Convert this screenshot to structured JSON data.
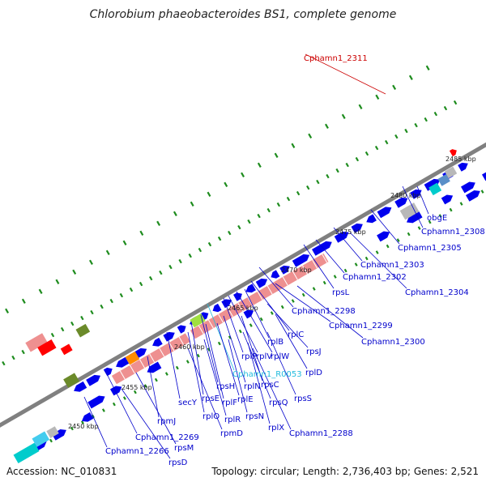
{
  "title": "Chlorobium phaeobacteroides BS1, complete genome",
  "footer": {
    "accession": "Accession: NC_010831",
    "summary": "Topology: circular; Length: 2,736,403 bp; Genes: 2,521"
  },
  "colors": {
    "gene_blue": "#0000ee",
    "rrna_pink": "#ee9090",
    "highlight_red": "#ff0000",
    "rna_cyan": "#00cccc",
    "steel_blue": "#5a8fc8",
    "olive": "#6b8a2a",
    "grey": "#b8b8b8",
    "khaki": "#b8b070",
    "orange": "#ff8c00",
    "lime": "#a0e040",
    "gc_green": "#1e8c1e",
    "backbone": "#808080",
    "label_blue": "#0000cc",
    "label_red": "#cc0000",
    "label_cyan": "#22bbdd"
  },
  "scale_labels": [
    {
      "text": "2450 kbp"
    },
    {
      "text": "2455 kbp"
    },
    {
      "text": "2460 kbp"
    },
    {
      "text": "2465 kbp"
    },
    {
      "text": "2470 kbp"
    },
    {
      "text": "2475 kbp"
    },
    {
      "text": "2480 kbp"
    },
    {
      "text": "2485 kbp"
    }
  ],
  "gene_labels": [
    {
      "text": "Cphamn1_2311",
      "color": "red"
    },
    {
      "text": "obgE",
      "color": "blue"
    },
    {
      "text": "Cphamn1_2308",
      "color": "blue"
    },
    {
      "text": "Cphamn1_2305",
      "color": "blue"
    },
    {
      "text": "Cphamn1_2303",
      "color": "blue"
    },
    {
      "text": "Cphamn1_2302",
      "color": "blue"
    },
    {
      "text": "Cphamn1_2304",
      "color": "blue"
    },
    {
      "text": "rpsL",
      "color": "blue"
    },
    {
      "text": "Cphamn1_2298",
      "color": "blue"
    },
    {
      "text": "Cphamn1_2299",
      "color": "blue"
    },
    {
      "text": "Cphamn1_2300",
      "color": "blue"
    },
    {
      "text": "rplC",
      "color": "blue"
    },
    {
      "text": "rplB",
      "color": "blue"
    },
    {
      "text": "rpsJ",
      "color": "blue"
    },
    {
      "text": "rplW",
      "color": "blue"
    },
    {
      "text": "rplV",
      "color": "blue"
    },
    {
      "text": "rplP",
      "color": "blue"
    },
    {
      "text": "rplD",
      "color": "blue"
    },
    {
      "text": "Cphamn1_R0053",
      "color": "cyan"
    },
    {
      "text": "rpsC",
      "color": "blue"
    },
    {
      "text": "rplN",
      "color": "blue"
    },
    {
      "text": "rpsS",
      "color": "blue"
    },
    {
      "text": "rpsH",
      "color": "blue"
    },
    {
      "text": "rplE",
      "color": "blue"
    },
    {
      "text": "rpsQ",
      "color": "blue"
    },
    {
      "text": "rpsE",
      "color": "blue"
    },
    {
      "text": "rplF",
      "color": "blue"
    },
    {
      "text": "secY",
      "color": "blue"
    },
    {
      "text": "rplO",
      "color": "blue"
    },
    {
      "text": "rplR",
      "color": "blue"
    },
    {
      "text": "rpsN",
      "color": "blue"
    },
    {
      "text": "rplX",
      "color": "blue"
    },
    {
      "text": "Cphamn1_2288",
      "color": "blue"
    },
    {
      "text": "rpmJ",
      "color": "blue"
    },
    {
      "text": "rpmD",
      "color": "blue"
    },
    {
      "text": "Cphamn1_2269",
      "color": "blue"
    },
    {
      "text": "rpsM",
      "color": "blue"
    },
    {
      "text": "Cphamn1_2266",
      "color": "blue"
    },
    {
      "text": "rpsD",
      "color": "blue"
    }
  ]
}
